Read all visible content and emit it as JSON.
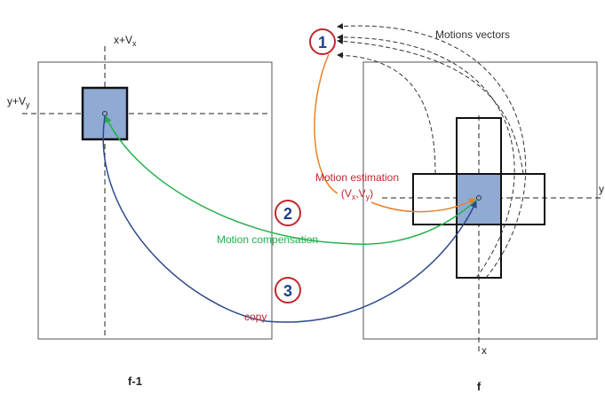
{
  "frames": {
    "prev": {
      "caption": "f-1",
      "x_label": "x+V",
      "x_sub": "x",
      "y_label": "y+V",
      "y_sub": "y"
    },
    "curr": {
      "caption": "f",
      "x_label": "x",
      "y_label": "y"
    }
  },
  "steps": [
    {
      "number": "1"
    },
    {
      "number": "2"
    },
    {
      "number": "3"
    }
  ],
  "labels": {
    "motion_vectors": "Motions vectors",
    "motion_estimation": "Motion estimation",
    "estimation_vector": {
      "open": "(V",
      "x_sub": "x",
      "sep": ",V",
      "y_sub": "y",
      "close": ")"
    },
    "motion_compensation": "Motion compensation",
    "copy": "copy"
  },
  "colors": {
    "block_fill": "#8faad3",
    "estimation": "#e8822a",
    "compensation": "#22b14c",
    "copy": "#2e4a8c",
    "step_circle": "#c0282d",
    "step_number": "#1f3f8f",
    "text_red": "#c0282d"
  }
}
